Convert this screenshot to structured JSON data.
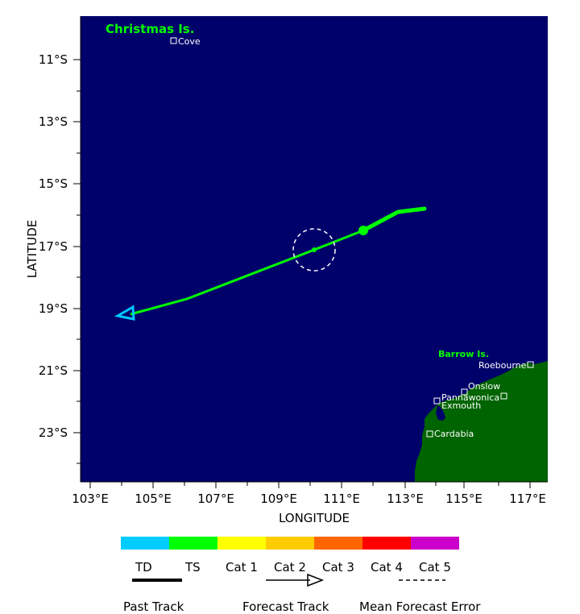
{
  "map": {
    "x_axis_label": "LONGITUDE",
    "y_axis_label": "LATITUDE",
    "lon_ticks": [
      "103°E",
      "105°E",
      "107°E",
      "109°E",
      "111°E",
      "113°E",
      "115°E",
      "117°E"
    ],
    "lat_ticks": [
      "11°S",
      "13°S",
      "15°S",
      "17°S",
      "19°S",
      "21°S",
      "23°S"
    ],
    "ocean_color": "#00006b",
    "land_color": "#006400"
  },
  "places": {
    "christmas_island": "Christmas Is.",
    "cove": "Cove",
    "barrow_island": "Barrow Is.",
    "roebourne": "Roebourne",
    "onslow": "Onslow",
    "pannawonica": "Pannawonica",
    "exmouth": "Exmouth",
    "cardabia": "Cardabia"
  },
  "track": {
    "past_color": "#00ff00",
    "forecast_color": "#00ff00",
    "forecast_end_color": "#00c8ff"
  },
  "legend": {
    "categories": [
      {
        "label": "TD",
        "color": "#00ccff"
      },
      {
        "label": "TS",
        "color": "#00ff00"
      },
      {
        "label": "Cat 1",
        "color": "#ffff00"
      },
      {
        "label": "Cat 2",
        "color": "#ffcc00"
      },
      {
        "label": "Cat 3",
        "color": "#ff6600"
      },
      {
        "label": "Cat 4",
        "color": "#ff0000"
      },
      {
        "label": "Cat 5",
        "color": "#cc00cc"
      }
    ],
    "past_track": "Past Track",
    "forecast_track": "Forecast Track",
    "mean_forecast_error": "Mean Forecast Error"
  }
}
